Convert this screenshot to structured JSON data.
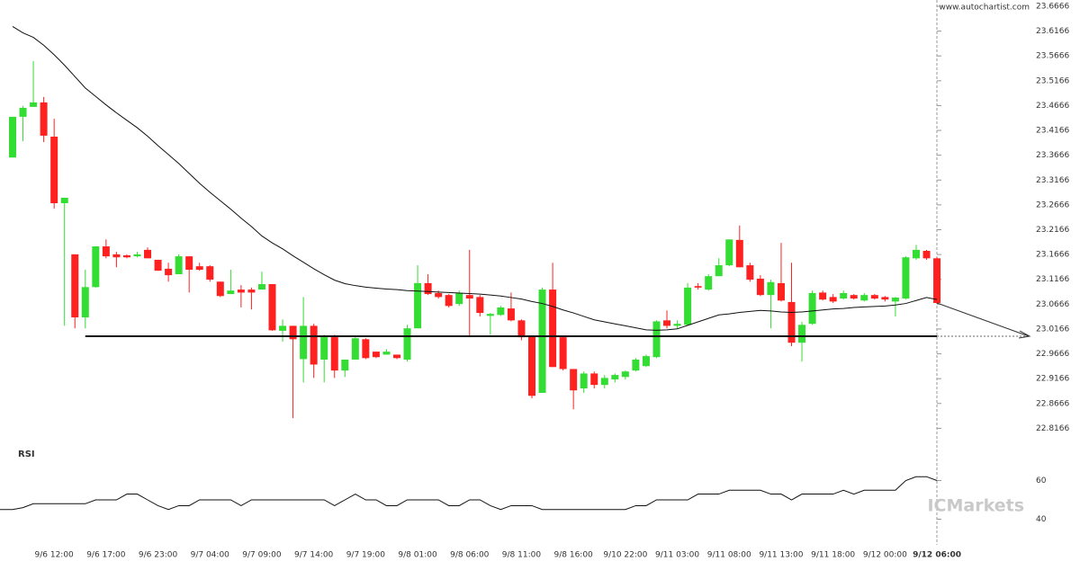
{
  "chart_data": {
    "type": "candlestick",
    "source": "www.autochartist.com",
    "brand": "ICMarkets",
    "categories": [
      null,
      null,
      null,
      null,
      "9/6 12:00",
      null,
      null,
      null,
      null,
      "9/6 17:00",
      null,
      null,
      null,
      null,
      "9/6 23:00",
      null,
      null,
      null,
      null,
      "9/7 04:00",
      null,
      null,
      null,
      null,
      "9/7 09:00",
      null,
      null,
      null,
      null,
      "9/7 14:00",
      null,
      null,
      null,
      null,
      "9/7 19:00",
      null,
      null,
      null,
      null,
      "9/8 01:00",
      null,
      null,
      null,
      null,
      "9/8 06:00",
      null,
      null,
      null,
      null,
      "9/8 11:00",
      null,
      null,
      null,
      null,
      "9/8 16:00",
      null,
      null,
      null,
      null,
      "9/10 22:00",
      null,
      null,
      null,
      null,
      "9/11 03:00",
      null,
      null,
      null,
      null,
      "9/11 08:00",
      null,
      null,
      null,
      null,
      "9/11 13:00",
      null,
      null,
      null,
      null,
      "9/11 18:00",
      null,
      null,
      null,
      null,
      "9/12 00:00",
      null,
      null,
      null,
      null,
      "9/12 06:00"
    ],
    "open": [
      23.362,
      23.444,
      23.464,
      23.473,
      23.404,
      23.27,
      23.167,
      23.04,
      23.101,
      23.183,
      23.167,
      23.165,
      23.163,
      23.176,
      23.156,
      23.138,
      23.127,
      23.163,
      23.143,
      23.143,
      23.112,
      23.087,
      23.096,
      23.096,
      23.096,
      23.107,
      23.013,
      23.023,
      22.956,
      23.023,
      22.955,
      23.0,
      22.933,
      22.955,
      22.996,
      22.971,
      22.965,
      22.965,
      22.955,
      23.018,
      23.109,
      23.089,
      23.085,
      23.067,
      23.085,
      23.081,
      23.043,
      23.045,
      23.058,
      23.034,
      23.002,
      22.888,
      23.096,
      23.0,
      22.936,
      22.897,
      22.927,
      22.904,
      22.915,
      22.92,
      22.933,
      22.942,
      22.96,
      23.034,
      23.023,
      23.025,
      23.103,
      23.096,
      23.123,
      23.145,
      23.196,
      23.145,
      23.118,
      23.085,
      23.109,
      23.071,
      22.989,
      23.027,
      23.09,
      23.081,
      23.078,
      23.085,
      23.074,
      23.085,
      23.081,
      23.072,
      23.078,
      23.159,
      23.174,
      23.159
    ],
    "high": [
      23.444,
      23.466,
      23.556,
      23.484,
      23.44,
      23.281,
      23.167,
      23.136,
      23.183,
      23.197,
      23.172,
      23.167,
      23.172,
      23.181,
      23.156,
      23.15,
      23.167,
      23.163,
      23.15,
      23.145,
      23.112,
      23.136,
      23.105,
      23.1,
      23.132,
      23.107,
      23.036,
      23.023,
      23.081,
      23.027,
      23.005,
      23.005,
      22.955,
      23.0,
      22.998,
      22.971,
      22.976,
      22.965,
      23.025,
      23.145,
      23.127,
      23.094,
      23.087,
      23.094,
      23.176,
      23.085,
      23.049,
      23.063,
      23.09,
      23.036,
      23.002,
      23.1,
      23.15,
      23.003,
      22.936,
      22.931,
      22.931,
      22.924,
      22.927,
      22.933,
      22.958,
      22.965,
      23.034,
      23.054,
      23.034,
      23.109,
      23.109,
      23.127,
      23.159,
      23.197,
      23.225,
      23.15,
      23.125,
      23.116,
      23.19,
      23.15,
      23.031,
      23.094,
      23.094,
      23.087,
      23.094,
      23.087,
      23.089,
      23.087,
      23.083,
      23.081,
      23.163,
      23.186,
      23.176,
      23.161
    ],
    "low": [
      23.362,
      23.395,
      23.464,
      23.393,
      23.259,
      23.023,
      23.018,
      23.018,
      23.1,
      23.159,
      23.141,
      23.159,
      23.161,
      23.159,
      23.134,
      23.112,
      23.127,
      23.09,
      23.134,
      23.112,
      23.081,
      23.087,
      23.06,
      23.056,
      23.096,
      23.013,
      22.991,
      22.837,
      22.909,
      22.918,
      22.909,
      22.918,
      22.92,
      22.955,
      22.956,
      22.958,
      22.965,
      22.956,
      22.951,
      23.018,
      23.085,
      23.078,
      23.06,
      23.063,
      23.003,
      23.042,
      23.005,
      23.043,
      23.032,
      22.994,
      22.877,
      22.888,
      22.94,
      22.933,
      22.855,
      22.888,
      22.897,
      22.897,
      22.909,
      22.915,
      22.931,
      22.94,
      22.958,
      23.018,
      23.018,
      23.023,
      23.096,
      23.094,
      23.123,
      23.143,
      23.141,
      23.112,
      23.083,
      23.018,
      23.072,
      22.982,
      22.951,
      23.025,
      23.074,
      23.069,
      23.076,
      23.076,
      23.072,
      23.076,
      23.072,
      23.042,
      23.076,
      23.156,
      23.156,
      23.067
    ],
    "close": [
      23.444,
      23.462,
      23.473,
      23.406,
      23.27,
      23.281,
      23.04,
      23.101,
      23.183,
      23.163,
      23.161,
      23.161,
      23.167,
      23.159,
      23.134,
      23.125,
      23.163,
      23.136,
      23.136,
      23.116,
      23.083,
      23.094,
      23.09,
      23.09,
      23.107,
      23.014,
      23.023,
      22.996,
      23.023,
      22.945,
      23.0,
      22.933,
      22.955,
      22.998,
      22.958,
      22.96,
      22.971,
      22.958,
      23.018,
      23.109,
      23.087,
      23.081,
      23.063,
      23.089,
      23.078,
      23.049,
      23.047,
      23.06,
      23.034,
      23.0,
      22.882,
      23.096,
      22.94,
      22.936,
      22.893,
      22.927,
      22.904,
      22.918,
      22.924,
      22.931,
      22.955,
      22.962,
      23.032,
      23.023,
      23.027,
      23.1,
      23.1,
      23.123,
      23.145,
      23.197,
      23.141,
      23.116,
      23.085,
      23.111,
      23.074,
      22.989,
      23.025,
      23.089,
      23.076,
      23.072,
      23.089,
      23.078,
      23.085,
      23.078,
      23.076,
      23.08,
      23.161,
      23.176,
      23.159,
      23.069
    ],
    "ma": [
      23.626,
      23.613,
      23.604,
      23.588,
      23.569,
      23.548,
      23.525,
      23.502,
      23.485,
      23.468,
      23.452,
      23.437,
      23.422,
      23.405,
      23.386,
      23.368,
      23.35,
      23.33,
      23.31,
      23.292,
      23.275,
      23.258,
      23.24,
      23.223,
      23.204,
      23.19,
      23.178,
      23.164,
      23.151,
      23.138,
      23.126,
      23.115,
      23.108,
      23.104,
      23.101,
      23.099,
      23.097,
      23.096,
      23.094,
      23.093,
      23.092,
      23.091,
      23.09,
      23.089,
      23.088,
      23.087,
      23.085,
      23.083,
      23.08,
      23.077,
      23.072,
      23.068,
      23.062,
      23.055,
      23.049,
      23.042,
      23.035,
      23.031,
      23.027,
      23.023,
      23.019,
      23.015,
      23.014,
      23.015,
      23.017,
      23.024,
      23.031,
      23.038,
      23.045,
      23.047,
      23.05,
      23.052,
      23.054,
      23.053,
      23.051,
      23.05,
      23.051,
      23.053,
      23.055,
      23.057,
      23.058,
      23.06,
      23.061,
      23.062,
      23.063,
      23.065,
      23.068,
      23.074,
      23.08,
      23.076
    ],
    "support": 23.002,
    "up_color": "#33dd33",
    "down_color": "#ff2020",
    "ylim": [
      22.7666,
      23.6666
    ],
    "yticks": [
      23.6666,
      23.6166,
      23.5666,
      23.5166,
      23.4666,
      23.4166,
      23.3666,
      23.3166,
      23.2666,
      23.2166,
      23.1666,
      23.1166,
      23.0666,
      23.0166,
      22.9666,
      22.9166,
      22.8666,
      22.8166
    ],
    "rsi": {
      "label": "RSI",
      "values": [
        45,
        46,
        48,
        48,
        48,
        48,
        48,
        48,
        50,
        50,
        50,
        53,
        53,
        50,
        47,
        45,
        47,
        47,
        50,
        50,
        50,
        50,
        47,
        50,
        50,
        50,
        50,
        50,
        50,
        50,
        50,
        47,
        50,
        53,
        50,
        50,
        47,
        47,
        50,
        50,
        50,
        50,
        47,
        47,
        50,
        50,
        47,
        45,
        47,
        47,
        47,
        45,
        45,
        45,
        45,
        45,
        45,
        45,
        45,
        45,
        47,
        47,
        50,
        50,
        50,
        50,
        53,
        53,
        53,
        55,
        55,
        55,
        55,
        53,
        53,
        50,
        53,
        53,
        53,
        53,
        55,
        53,
        55,
        55,
        55,
        55,
        60,
        62,
        62,
        60
      ],
      "ylim": [
        30,
        70
      ],
      "yticks": [
        60,
        40
      ]
    }
  }
}
